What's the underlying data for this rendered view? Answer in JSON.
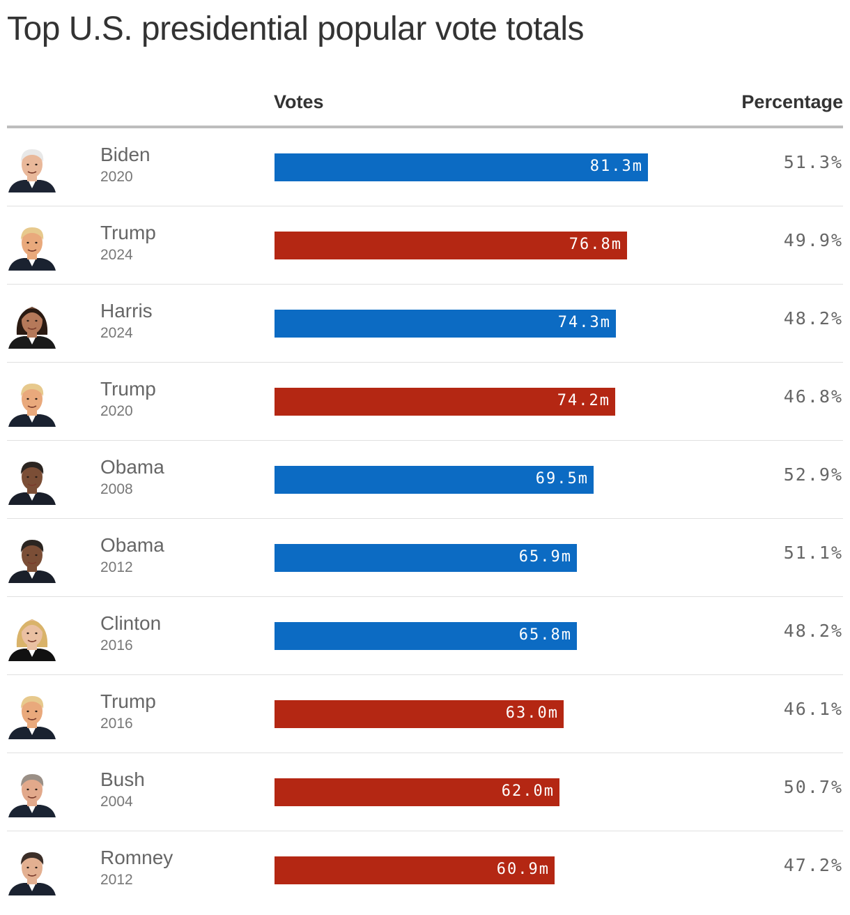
{
  "title": "Top U.S. presidential popular vote totals",
  "headers": {
    "votes": "Votes",
    "percentage": "Percentage"
  },
  "colors": {
    "democrat": "#0c6bc3",
    "republican": "#b42713"
  },
  "chart_data": {
    "type": "bar",
    "orientation": "horizontal",
    "title": "Top U.S. presidential popular vote totals",
    "value_unit": "million votes",
    "xlim": [
      0,
      91
    ],
    "grid": false,
    "legend": "none",
    "rows": [
      {
        "name": "Biden",
        "year": "2020",
        "party": "democrat",
        "avatar_icon": "biden-portrait-icon",
        "votes": 81.3,
        "votes_label": "81.3m",
        "pct_label": "51.3%"
      },
      {
        "name": "Trump",
        "year": "2024",
        "party": "republican",
        "avatar_icon": "trump-portrait-icon",
        "votes": 76.8,
        "votes_label": "76.8m",
        "pct_label": "49.9%"
      },
      {
        "name": "Harris",
        "year": "2024",
        "party": "democrat",
        "avatar_icon": "harris-portrait-icon",
        "votes": 74.3,
        "votes_label": "74.3m",
        "pct_label": "48.2%"
      },
      {
        "name": "Trump",
        "year": "2020",
        "party": "republican",
        "avatar_icon": "trump-portrait-icon",
        "votes": 74.2,
        "votes_label": "74.2m",
        "pct_label": "46.8%"
      },
      {
        "name": "Obama",
        "year": "2008",
        "party": "democrat",
        "avatar_icon": "obama-portrait-icon",
        "votes": 69.5,
        "votes_label": "69.5m",
        "pct_label": "52.9%"
      },
      {
        "name": "Obama",
        "year": "2012",
        "party": "democrat",
        "avatar_icon": "obama-portrait-icon",
        "votes": 65.9,
        "votes_label": "65.9m",
        "pct_label": "51.1%"
      },
      {
        "name": "Clinton",
        "year": "2016",
        "party": "democrat",
        "avatar_icon": "clinton-portrait-icon",
        "votes": 65.8,
        "votes_label": "65.8m",
        "pct_label": "48.2%"
      },
      {
        "name": "Trump",
        "year": "2016",
        "party": "republican",
        "avatar_icon": "trump-portrait-icon",
        "votes": 63.0,
        "votes_label": "63.0m",
        "pct_label": "46.1%"
      },
      {
        "name": "Bush",
        "year": "2004",
        "party": "republican",
        "avatar_icon": "bush-portrait-icon",
        "votes": 62.0,
        "votes_label": "62.0m",
        "pct_label": "50.7%"
      },
      {
        "name": "Romney",
        "year": "2012",
        "party": "republican",
        "avatar_icon": "romney-portrait-icon",
        "votes": 60.9,
        "votes_label": "60.9m",
        "pct_label": "47.2%"
      }
    ]
  }
}
